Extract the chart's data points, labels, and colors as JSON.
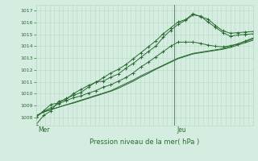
{
  "title": "Pression niveau de la mer( hPa )",
  "xlabel_mer": "Mer",
  "xlabel_jeu": "Jeu",
  "ylim": [
    1007.3,
    1017.5
  ],
  "yticks": [
    1008,
    1009,
    1010,
    1011,
    1012,
    1013,
    1014,
    1015,
    1016,
    1017
  ],
  "bg_color": "#d4ede0",
  "grid_color": "#b8d8c8",
  "line_color": "#2a6b30",
  "vline_color": "#557755",
  "vline_x": 0.638,
  "series": [
    {
      "y": [
        1007.4,
        1008.15,
        1008.55,
        1009.35,
        1009.5,
        1010.0,
        1010.35,
        1010.7,
        1010.95,
        1011.35,
        1011.75,
        1012.05,
        1012.45,
        1012.95,
        1013.45,
        1013.95,
        1014.45,
        1015.05,
        1015.55,
        1016.05,
        1016.25,
        1016.75,
        1016.5,
        1016.3,
        1015.75,
        1015.3,
        1015.1,
        1015.15,
        1015.2,
        1015.25
      ],
      "marker": true
    },
    {
      "y": [
        1008.0,
        1008.55,
        1009.1,
        1009.2,
        1009.6,
        1009.85,
        1010.1,
        1010.55,
        1011.0,
        1011.05,
        1011.4,
        1011.65,
        1012.15,
        1012.55,
        1013.05,
        1013.55,
        1014.0,
        1014.75,
        1015.35,
        1015.85,
        1016.2,
        1016.65,
        1016.55,
        1016.05,
        1015.6,
        1015.15,
        1014.85,
        1014.95,
        1015.0,
        1015.05
      ],
      "marker": true
    },
    {
      "y": [
        1008.05,
        1008.5,
        1008.8,
        1009.15,
        1009.4,
        1009.65,
        1009.8,
        1010.05,
        1010.25,
        1010.55,
        1010.75,
        1011.05,
        1011.35,
        1011.75,
        1012.25,
        1012.65,
        1013.1,
        1013.55,
        1014.0,
        1014.35,
        1014.35,
        1014.35,
        1014.25,
        1014.1,
        1014.0,
        1013.95,
        1014.05,
        1014.2,
        1014.45,
        1014.7
      ],
      "marker": true
    },
    {
      "y": [
        1008.1,
        1008.45,
        1008.65,
        1008.85,
        1009.05,
        1009.2,
        1009.4,
        1009.6,
        1009.8,
        1010.0,
        1010.2,
        1010.45,
        1010.75,
        1011.05,
        1011.4,
        1011.7,
        1012.05,
        1012.35,
        1012.65,
        1012.95,
        1013.15,
        1013.35,
        1013.45,
        1013.55,
        1013.65,
        1013.75,
        1013.9,
        1014.1,
        1014.3,
        1014.5
      ],
      "marker": false
    },
    {
      "y": [
        1008.15,
        1008.45,
        1008.65,
        1008.85,
        1009.05,
        1009.25,
        1009.45,
        1009.65,
        1009.85,
        1010.05,
        1010.25,
        1010.55,
        1010.85,
        1011.15,
        1011.5,
        1011.8,
        1012.1,
        1012.4,
        1012.7,
        1013.0,
        1013.2,
        1013.4,
        1013.5,
        1013.6,
        1013.7,
        1013.8,
        1014.0,
        1014.2,
        1014.4,
        1014.6
      ],
      "marker": false
    }
  ],
  "n_xticks_minor": 48,
  "figsize": [
    3.2,
    2.0
  ],
  "dpi": 100
}
